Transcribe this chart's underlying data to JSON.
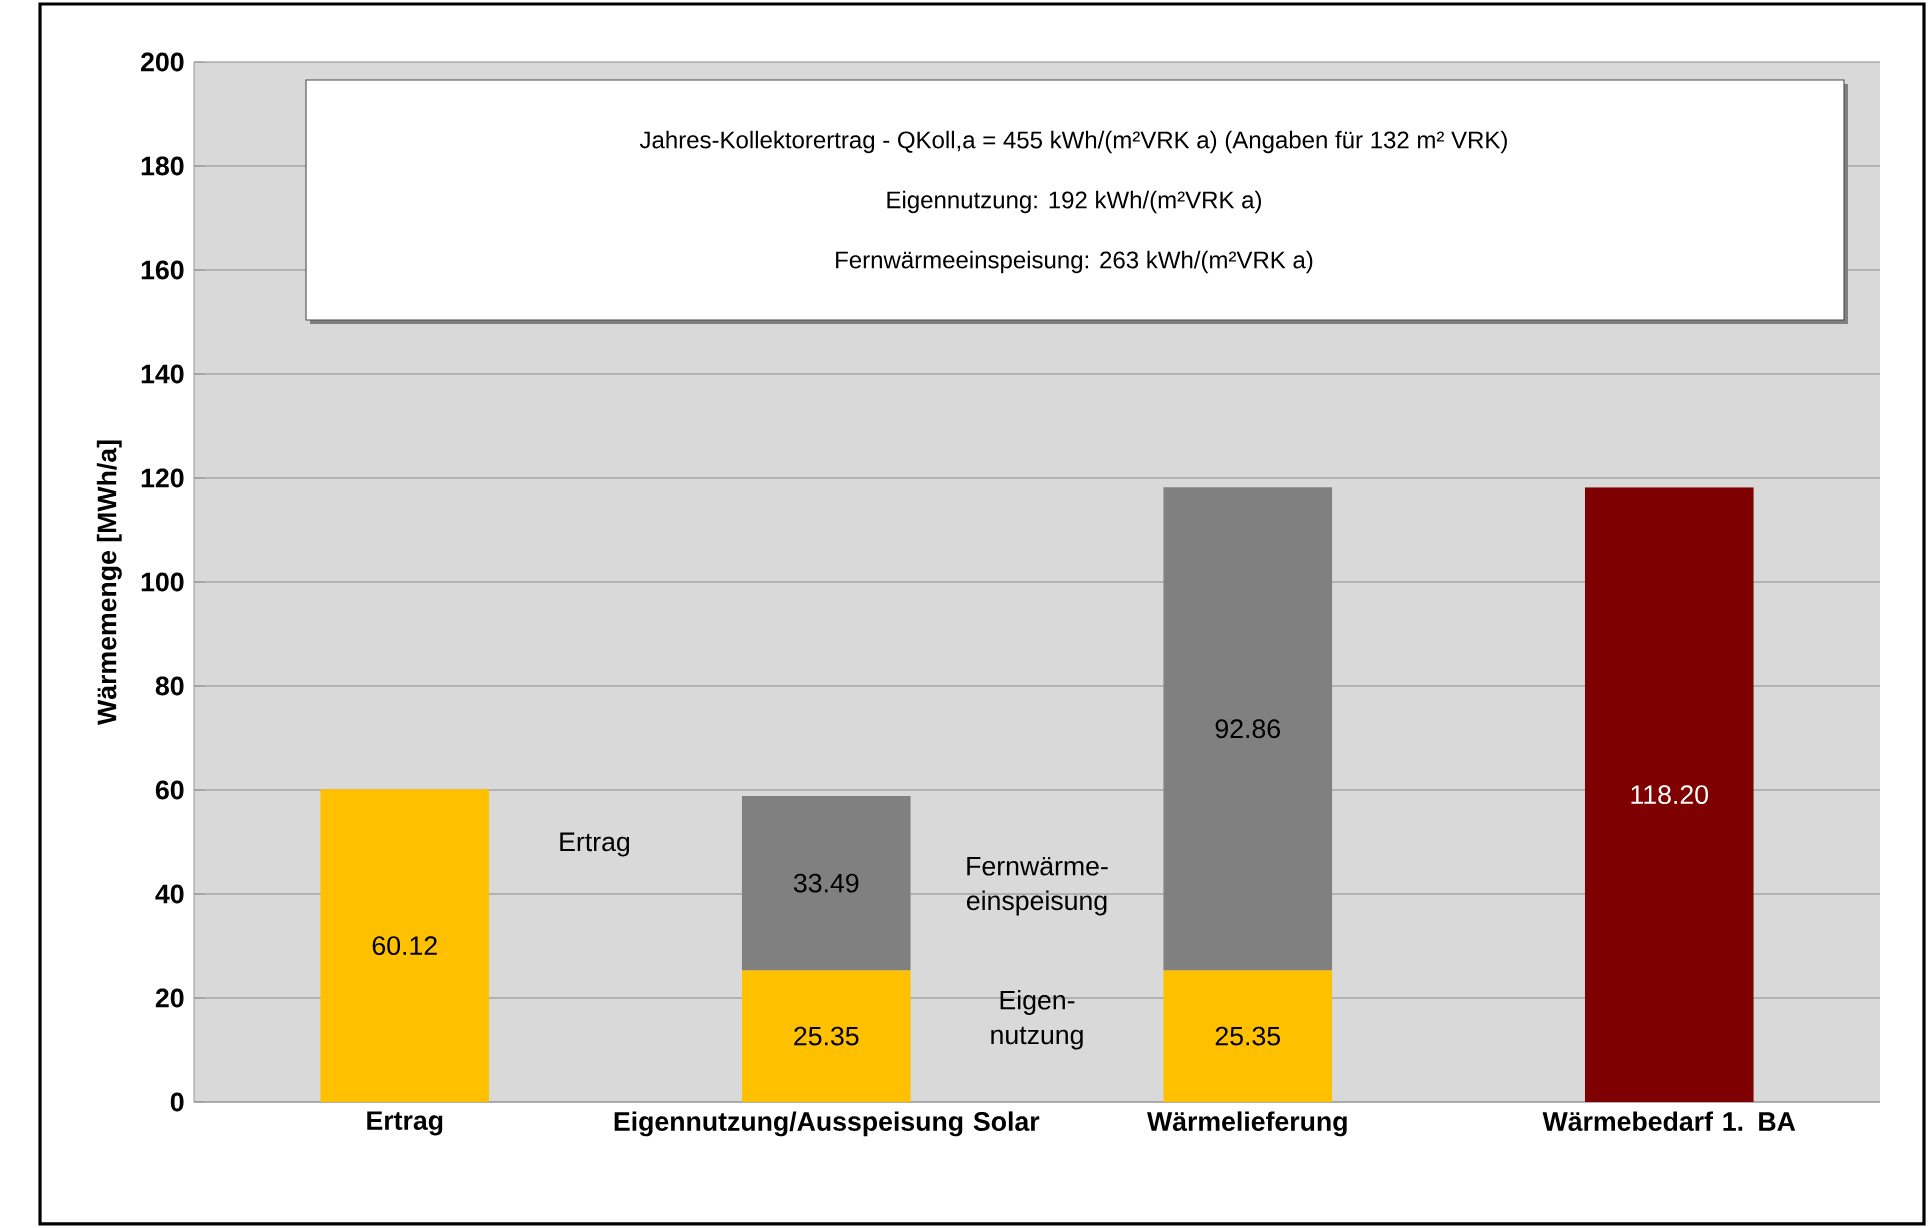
{
  "chart_data": {
    "type": "bar",
    "stacked": true,
    "ylabel": "Wärmemenge [MWh/a]",
    "categories": [
      "Ertrag",
      "Eigennutzung/Ausspeisung Solar",
      "Wärmelieferung",
      "Wärmebedarf 1. BA"
    ],
    "series": [
      {
        "color": "#ffc000",
        "values": [
          60.12,
          25.35,
          25.35,
          null
        ],
        "value_labels": [
          "60.12",
          "25.35",
          "25.35",
          null
        ]
      },
      {
        "color": "#808080",
        "values": [
          null,
          33.49,
          92.86,
          null
        ],
        "value_labels": [
          null,
          "33.49",
          "92.86",
          null
        ]
      },
      {
        "color": "#7f0000",
        "values": [
          null,
          null,
          null,
          118.2
        ],
        "value_labels": [
          null,
          null,
          null,
          "118.20"
        ]
      }
    ],
    "ylim": [
      0,
      200
    ],
    "yticks": [
      0,
      20,
      40,
      60,
      80,
      100,
      120,
      140,
      160,
      180,
      200
    ],
    "grid": "y",
    "annotations": [
      "Jahres-Kollektorertrag - QKoll,a = 455 kWh/(m²VRK a) (Angaben für 132 m² VRK)",
      "Eigennutzung: 192 kWh/(m²VRK a)",
      "Fernwärmeeinspeisung: 263 kWh/(m²VRK a)",
      "Ertrag",
      "Fernwärme-einspeisung",
      "Eigen-nutzung"
    ]
  }
}
